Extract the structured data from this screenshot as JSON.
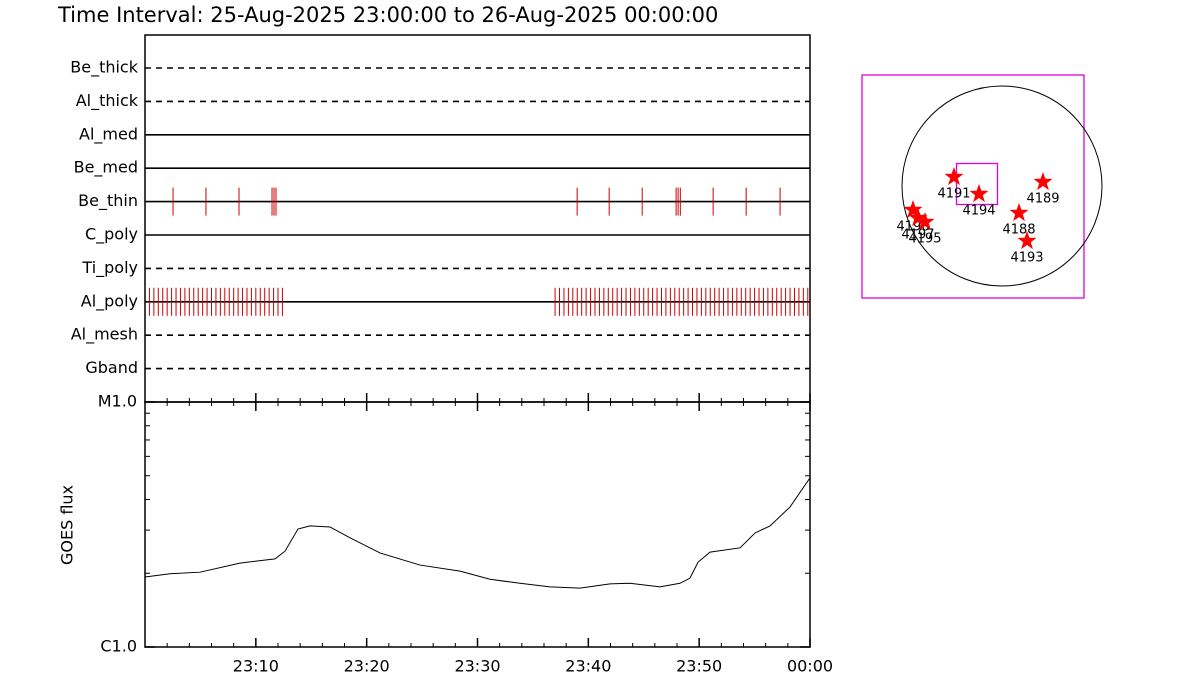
{
  "title": "Time Interval: 25-Aug-2025 23:00:00 to 26-Aug-2025 00:00:00",
  "filters": {
    "xlim": [
      0,
      60
    ],
    "event_color": "#cc0000",
    "rows": [
      {
        "name": "Be_thick",
        "style": "dashed"
      },
      {
        "name": "Al_thick",
        "style": "dashed"
      },
      {
        "name": "Al_med",
        "style": "solid"
      },
      {
        "name": "Be_med",
        "style": "solid"
      },
      {
        "name": "Be_thin",
        "style": "solid",
        "events": [
          2.53,
          5.5,
          8.48,
          11.46,
          11.64,
          11.82,
          38.99,
          41.88,
          44.86,
          47.92,
          48.1,
          48.3,
          51.26,
          54.24,
          57.3
        ]
      },
      {
        "name": "C_poly",
        "style": "solid"
      },
      {
        "name": "Ti_poly",
        "style": "dashed"
      },
      {
        "name": "Al_poly",
        "style": "solid",
        "events": [
          0.4,
          0.8,
          1.2,
          1.6,
          2,
          2.4,
          2.8,
          3.2,
          3.6,
          4,
          4.4,
          4.8,
          5.2,
          5.6,
          6,
          6.4,
          6.8,
          7.2,
          7.6,
          8,
          8.4,
          8.8,
          9.2,
          9.6,
          10,
          10.4,
          10.8,
          11.2,
          11.6,
          12,
          12.4,
          37,
          37.4,
          37.8,
          38.2,
          38.6,
          39,
          39.4,
          39.8,
          40.2,
          40.6,
          41,
          41.4,
          41.8,
          42.2,
          42.6,
          43,
          43.4,
          43.8,
          44.2,
          44.6,
          45,
          45.4,
          45.8,
          46.2,
          46.6,
          47,
          47.4,
          47.8,
          48.2,
          48.6,
          49,
          49.4,
          49.8,
          50.2,
          50.6,
          51,
          51.4,
          51.8,
          52.2,
          52.6,
          53,
          53.4,
          53.8,
          54.2,
          54.6,
          55,
          55.4,
          55.8,
          56.2,
          56.6,
          57,
          57.4,
          57.8,
          58.2,
          58.6,
          59,
          59.4,
          59.8
        ]
      },
      {
        "name": "Al_mesh",
        "style": "dashed"
      },
      {
        "name": "Gband",
        "style": "dashed"
      }
    ]
  },
  "chart_data": {
    "type": "line",
    "ylabel": "GOES flux",
    "log_y": true,
    "color": "#000000",
    "xlim": [
      0,
      60
    ],
    "xticks": [
      {
        "value": 10,
        "label": "23:10"
      },
      {
        "value": 20,
        "label": "23:20"
      },
      {
        "value": 30,
        "label": "23:30"
      },
      {
        "value": 40,
        "label": "23:40"
      },
      {
        "value": 50,
        "label": "23:50"
      },
      {
        "value": 60,
        "label": "00:00"
      }
    ],
    "xminor_ticks": [
      2,
      4,
      6,
      8,
      12,
      14,
      16,
      18,
      22,
      24,
      26,
      28,
      32,
      34,
      36,
      38,
      42,
      44,
      46,
      48,
      52,
      54,
      56,
      58
    ],
    "ylim": [
      1e-06,
      1e-05
    ],
    "yticks": [
      {
        "value": 1e-06,
        "label": "C1.0"
      },
      {
        "value": 1e-05,
        "label": "M1.0"
      }
    ],
    "yminor_ticks": [
      2e-06,
      3e-06,
      4e-06,
      5e-06,
      6e-06,
      7e-06,
      8e-06,
      9e-06
    ],
    "x": [
      0,
      2.26,
      4.96,
      8.57,
      11.73,
      12.63,
      13.8,
      14.89,
      16.69,
      18.5,
      21.2,
      24.81,
      28.42,
      31.13,
      33.83,
      36.54,
      39.25,
      41.95,
      43.76,
      46.47,
      48.27,
      49.17,
      49.9,
      50.98,
      53.69,
      55.04,
      56.39,
      58.2,
      60
    ],
    "values": [
      1.93e-06,
      1.99e-06,
      2.02e-06,
      2.2e-06,
      2.29e-06,
      2.46e-06,
      3.03e-06,
      3.12e-06,
      3.09e-06,
      2.79e-06,
      2.42e-06,
      2.16e-06,
      2.04e-06,
      1.89e-06,
      1.82e-06,
      1.76e-06,
      1.74e-06,
      1.81e-06,
      1.82e-06,
      1.76e-06,
      1.82e-06,
      1.91e-06,
      2.22e-06,
      2.44e-06,
      2.54e-06,
      2.92e-06,
      3.12e-06,
      3.73e-06,
      4.9e-06
    ]
  },
  "map": {
    "xlim": [
      -1.4,
      0.82
    ],
    "ylim": [
      -1.12,
      1.11
    ],
    "disk_radius": 1,
    "box_color": "#e000e0",
    "star_color": "#ff0000",
    "fov": {
      "x": -0.25,
      "y": 0.02,
      "size": 0.41
    },
    "regions": [
      {
        "label": "4191",
        "x": -0.48,
        "y": 0.09
      },
      {
        "label": "4194",
        "x": -0.23,
        "y": -0.08
      },
      {
        "label": "4189",
        "x": 0.41,
        "y": 0.04
      },
      {
        "label": "4188",
        "x": 0.17,
        "y": -0.27
      },
      {
        "label": "4193",
        "x": 0.25,
        "y": -0.55
      },
      {
        "label": "4196",
        "x": -0.89,
        "y": -0.24
      },
      {
        "label": "4197",
        "x": -0.84,
        "y": -0.32
      },
      {
        "label": "4195",
        "x": -0.77,
        "y": -0.36
      }
    ]
  }
}
